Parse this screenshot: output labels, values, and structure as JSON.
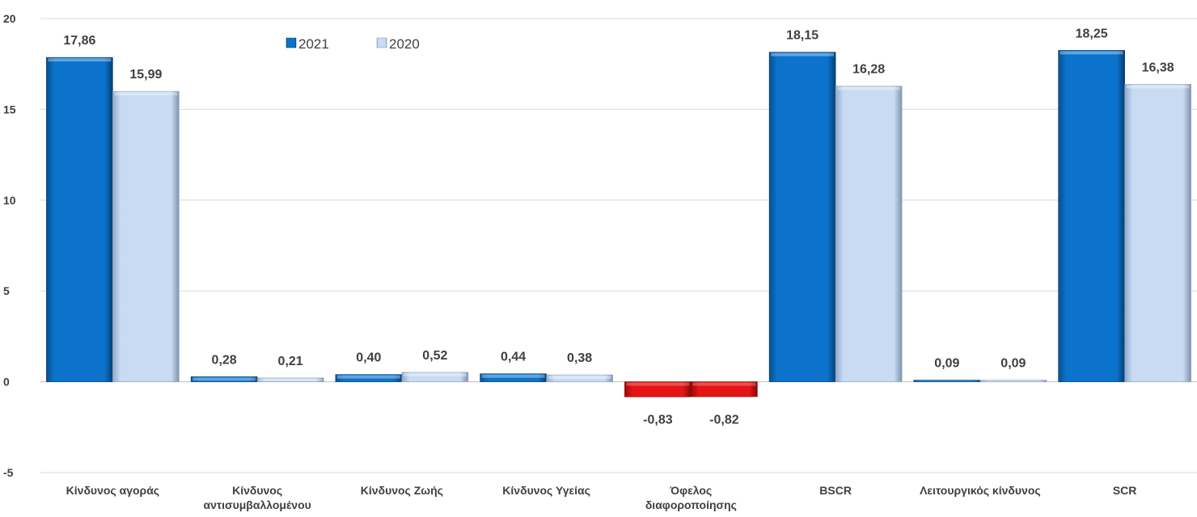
{
  "chart_data": {
    "type": "bar",
    "categories": [
      [
        "Κίνδυνος αγοράς"
      ],
      [
        "Κίνδυνος",
        "αντισυμβαλλομένου"
      ],
      [
        "Κίνδυνος Ζωής"
      ],
      [
        "Κίνδυνος Υγείας"
      ],
      [
        "Όφελος",
        "διαφοροποίησης"
      ],
      [
        "BSCR"
      ],
      [
        "Λειτουργικός κίνδυνος"
      ],
      [
        "SCR"
      ]
    ],
    "series": [
      {
        "name": "2021",
        "values": [
          17.86,
          0.28,
          0.4,
          0.44,
          -0.83,
          18.15,
          0.09,
          18.25
        ],
        "labels": [
          "17,86",
          "0,28",
          "0,40",
          "0,44",
          "-0,83",
          "18,15",
          "0,09",
          "18,25"
        ],
        "color": "#0B6FC4"
      },
      {
        "name": "2020",
        "values": [
          15.99,
          0.21,
          0.52,
          0.38,
          -0.82,
          16.28,
          0.09,
          16.38
        ],
        "labels": [
          "15,99",
          "0,21",
          "0,52",
          "0,38",
          "-0,82",
          "16,28",
          "0,09",
          "16,38"
        ],
        "color": "#C5D9F1"
      }
    ],
    "negative_color": "#E01010",
    "ylim": [
      -5,
      20
    ],
    "yticks": [
      -5,
      0,
      5,
      10,
      15,
      20
    ],
    "grid": true,
    "legend_position": "top-center"
  }
}
